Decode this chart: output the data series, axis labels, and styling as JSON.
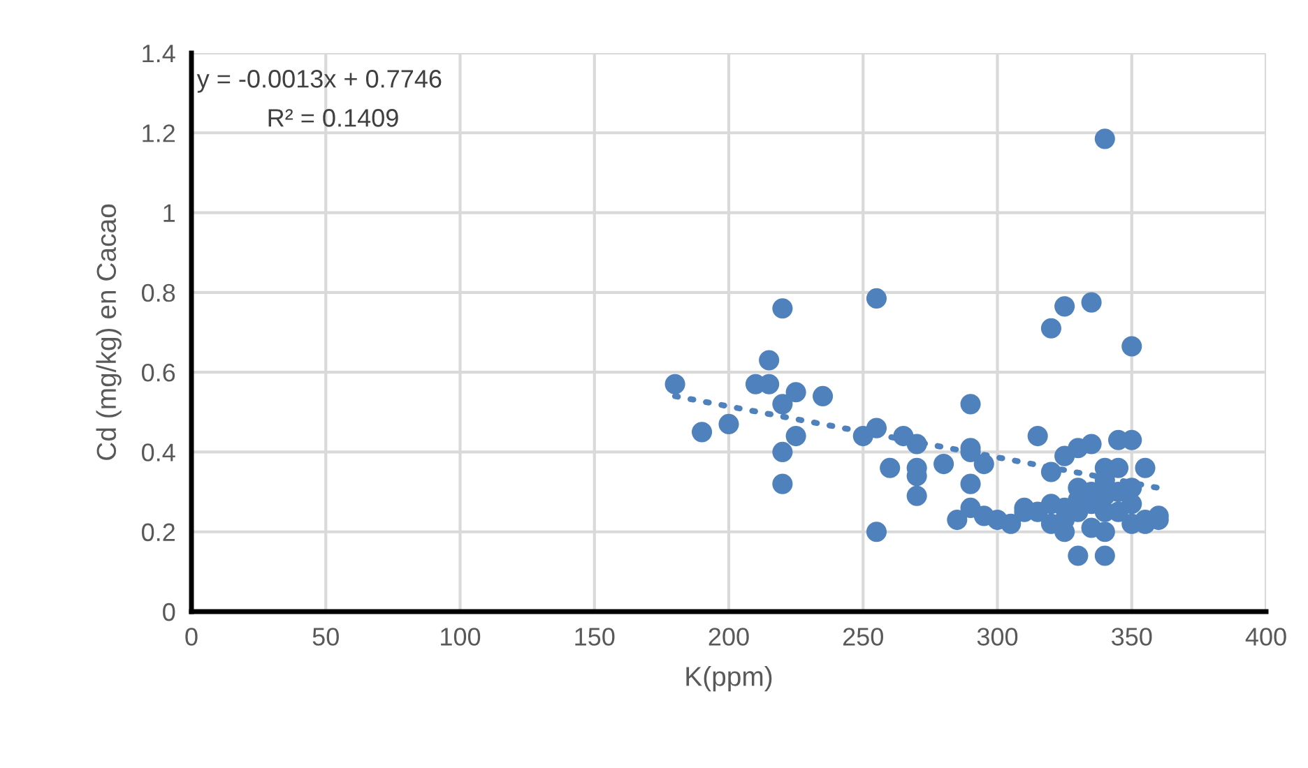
{
  "chart_data": {
    "type": "scatter",
    "xlabel": "K(ppm)",
    "ylabel": "Cd (mg/kg) en Cacao",
    "xlim": [
      0,
      400
    ],
    "xticks": [
      0,
      50,
      100,
      150,
      200,
      250,
      300,
      350,
      400
    ],
    "ylim": [
      0,
      1.4
    ],
    "yticks": [
      0,
      0.2,
      0.4,
      0.6,
      0.8,
      1,
      1.2,
      1.4
    ],
    "grid": true,
    "marker": "circle",
    "annotations": [
      "y = -0.0013x + 0.7746",
      "R² = 0.1409"
    ],
    "series": [
      {
        "color": "#4f81bd",
        "x": [
          180,
          190,
          200,
          210,
          215,
          215,
          220,
          220,
          220,
          220,
          225,
          225,
          235,
          250,
          255,
          255,
          255,
          260,
          265,
          270,
          270,
          270,
          270,
          280,
          285,
          290,
          290,
          290,
          290,
          290,
          295,
          295,
          300,
          305,
          310,
          310,
          315,
          315,
          320,
          320,
          320,
          320,
          325,
          325,
          325,
          325,
          325,
          330,
          330,
          330,
          330,
          330,
          335,
          335,
          335,
          335,
          335,
          340,
          340,
          340,
          340,
          340,
          340,
          340,
          345,
          345,
          345,
          345,
          350,
          350,
          350,
          350,
          350,
          355,
          355,
          355,
          360,
          360
        ],
        "values": [
          0.57,
          0.45,
          0.47,
          0.57,
          0.57,
          0.63,
          0.76,
          0.52,
          0.4,
          0.32,
          0.44,
          0.55,
          0.54,
          0.44,
          0.46,
          0.785,
          0.2,
          0.36,
          0.44,
          0.42,
          0.36,
          0.34,
          0.29,
          0.37,
          0.23,
          0.52,
          0.41,
          0.4,
          0.32,
          0.26,
          0.37,
          0.24,
          0.23,
          0.22,
          0.26,
          0.25,
          0.44,
          0.25,
          0.71,
          0.35,
          0.27,
          0.22,
          0.765,
          0.39,
          0.26,
          0.23,
          0.2,
          0.41,
          0.31,
          0.28,
          0.25,
          0.14,
          0.775,
          0.42,
          0.3,
          0.27,
          0.21,
          1.185,
          0.36,
          0.33,
          0.29,
          0.25,
          0.2,
          0.14,
          0.43,
          0.36,
          0.3,
          0.25,
          0.665,
          0.43,
          0.31,
          0.27,
          0.22,
          0.36,
          0.23,
          0.22,
          0.24,
          0.23
        ]
      },
      {
        "type": "line",
        "color": "#4f81bd",
        "line_style": "dotted",
        "marker": "none",
        "x": [
          180,
          360
        ],
        "values": [
          0.54,
          0.31
        ]
      }
    ]
  }
}
